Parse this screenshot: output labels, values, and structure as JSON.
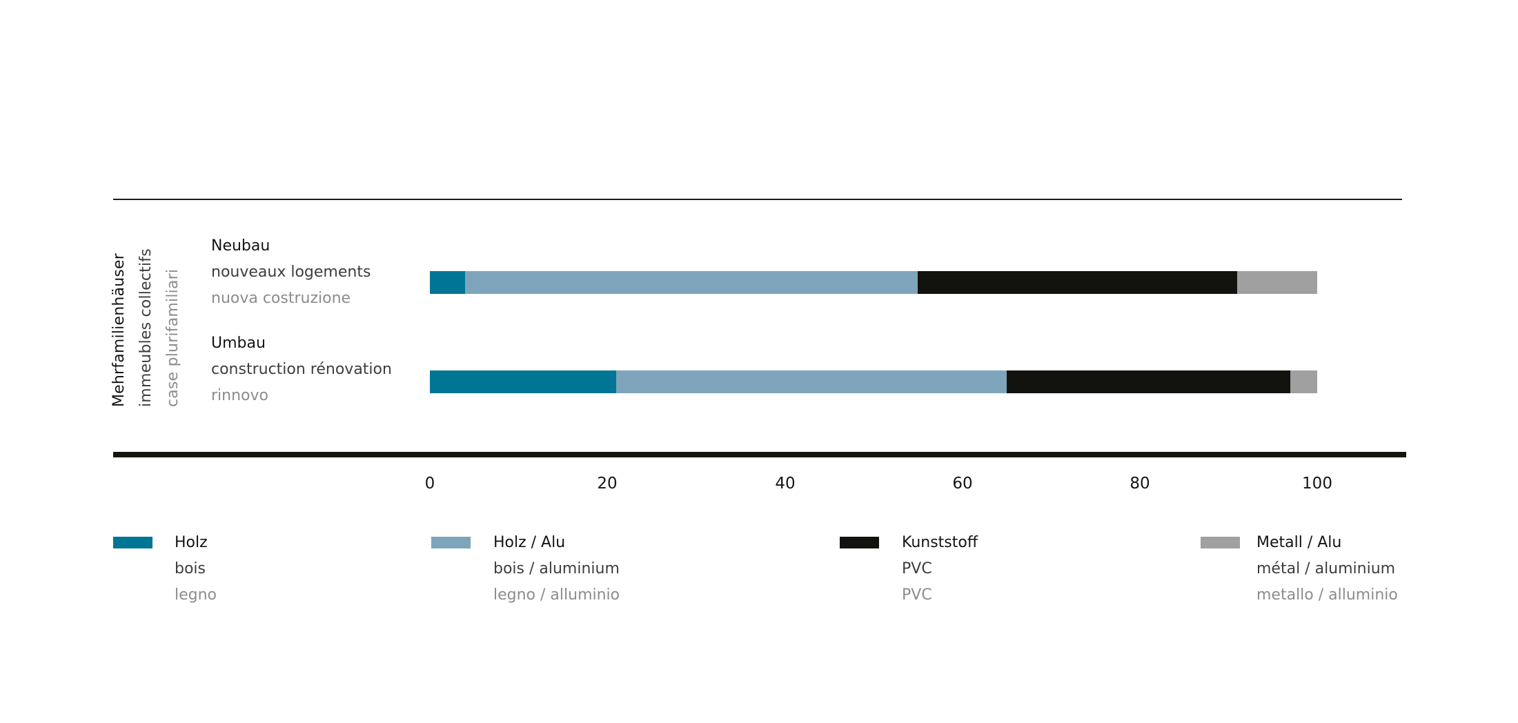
{
  "chart_data": {
    "type": "bar",
    "orientation": "horizontal",
    "stacked": true,
    "group_label": {
      "de": "Mehrfamilienhäuser",
      "fr": "immeubles collectifs",
      "it": "case plurifamiliari"
    },
    "categories": [
      {
        "de": "Neubau",
        "fr": "nouveaux logements",
        "it": "nuova costruzione"
      },
      {
        "de": "Umbau",
        "fr": "construction rénovation",
        "it": "rinnovo"
      }
    ],
    "series": [
      {
        "name": "Holz",
        "name_fr": "bois",
        "name_it": "legno",
        "color": "#007595",
        "values": [
          4,
          21
        ]
      },
      {
        "name": "Holz / Alu",
        "name_fr": "bois / aluminium",
        "name_it": "legno / alluminio",
        "color": "#7ea5bb",
        "values": [
          51,
          44
        ]
      },
      {
        "name": "Kunststoff",
        "name_fr": "PVC",
        "name_it": "PVC",
        "color": "#12120e",
        "values": [
          36,
          32
        ]
      },
      {
        "name": "Metall / Alu",
        "name_fr": "métal / aluminium",
        "name_it": "metallo / alluminio",
        "color": "#a0a0a0",
        "values": [
          9,
          3
        ]
      }
    ],
    "xlim": [
      0,
      100
    ],
    "xticks": [
      "0",
      "20",
      "40",
      "60",
      "80",
      "100"
    ],
    "xlabel": "",
    "ylabel": "",
    "grid": false,
    "legend_position": "bottom"
  }
}
